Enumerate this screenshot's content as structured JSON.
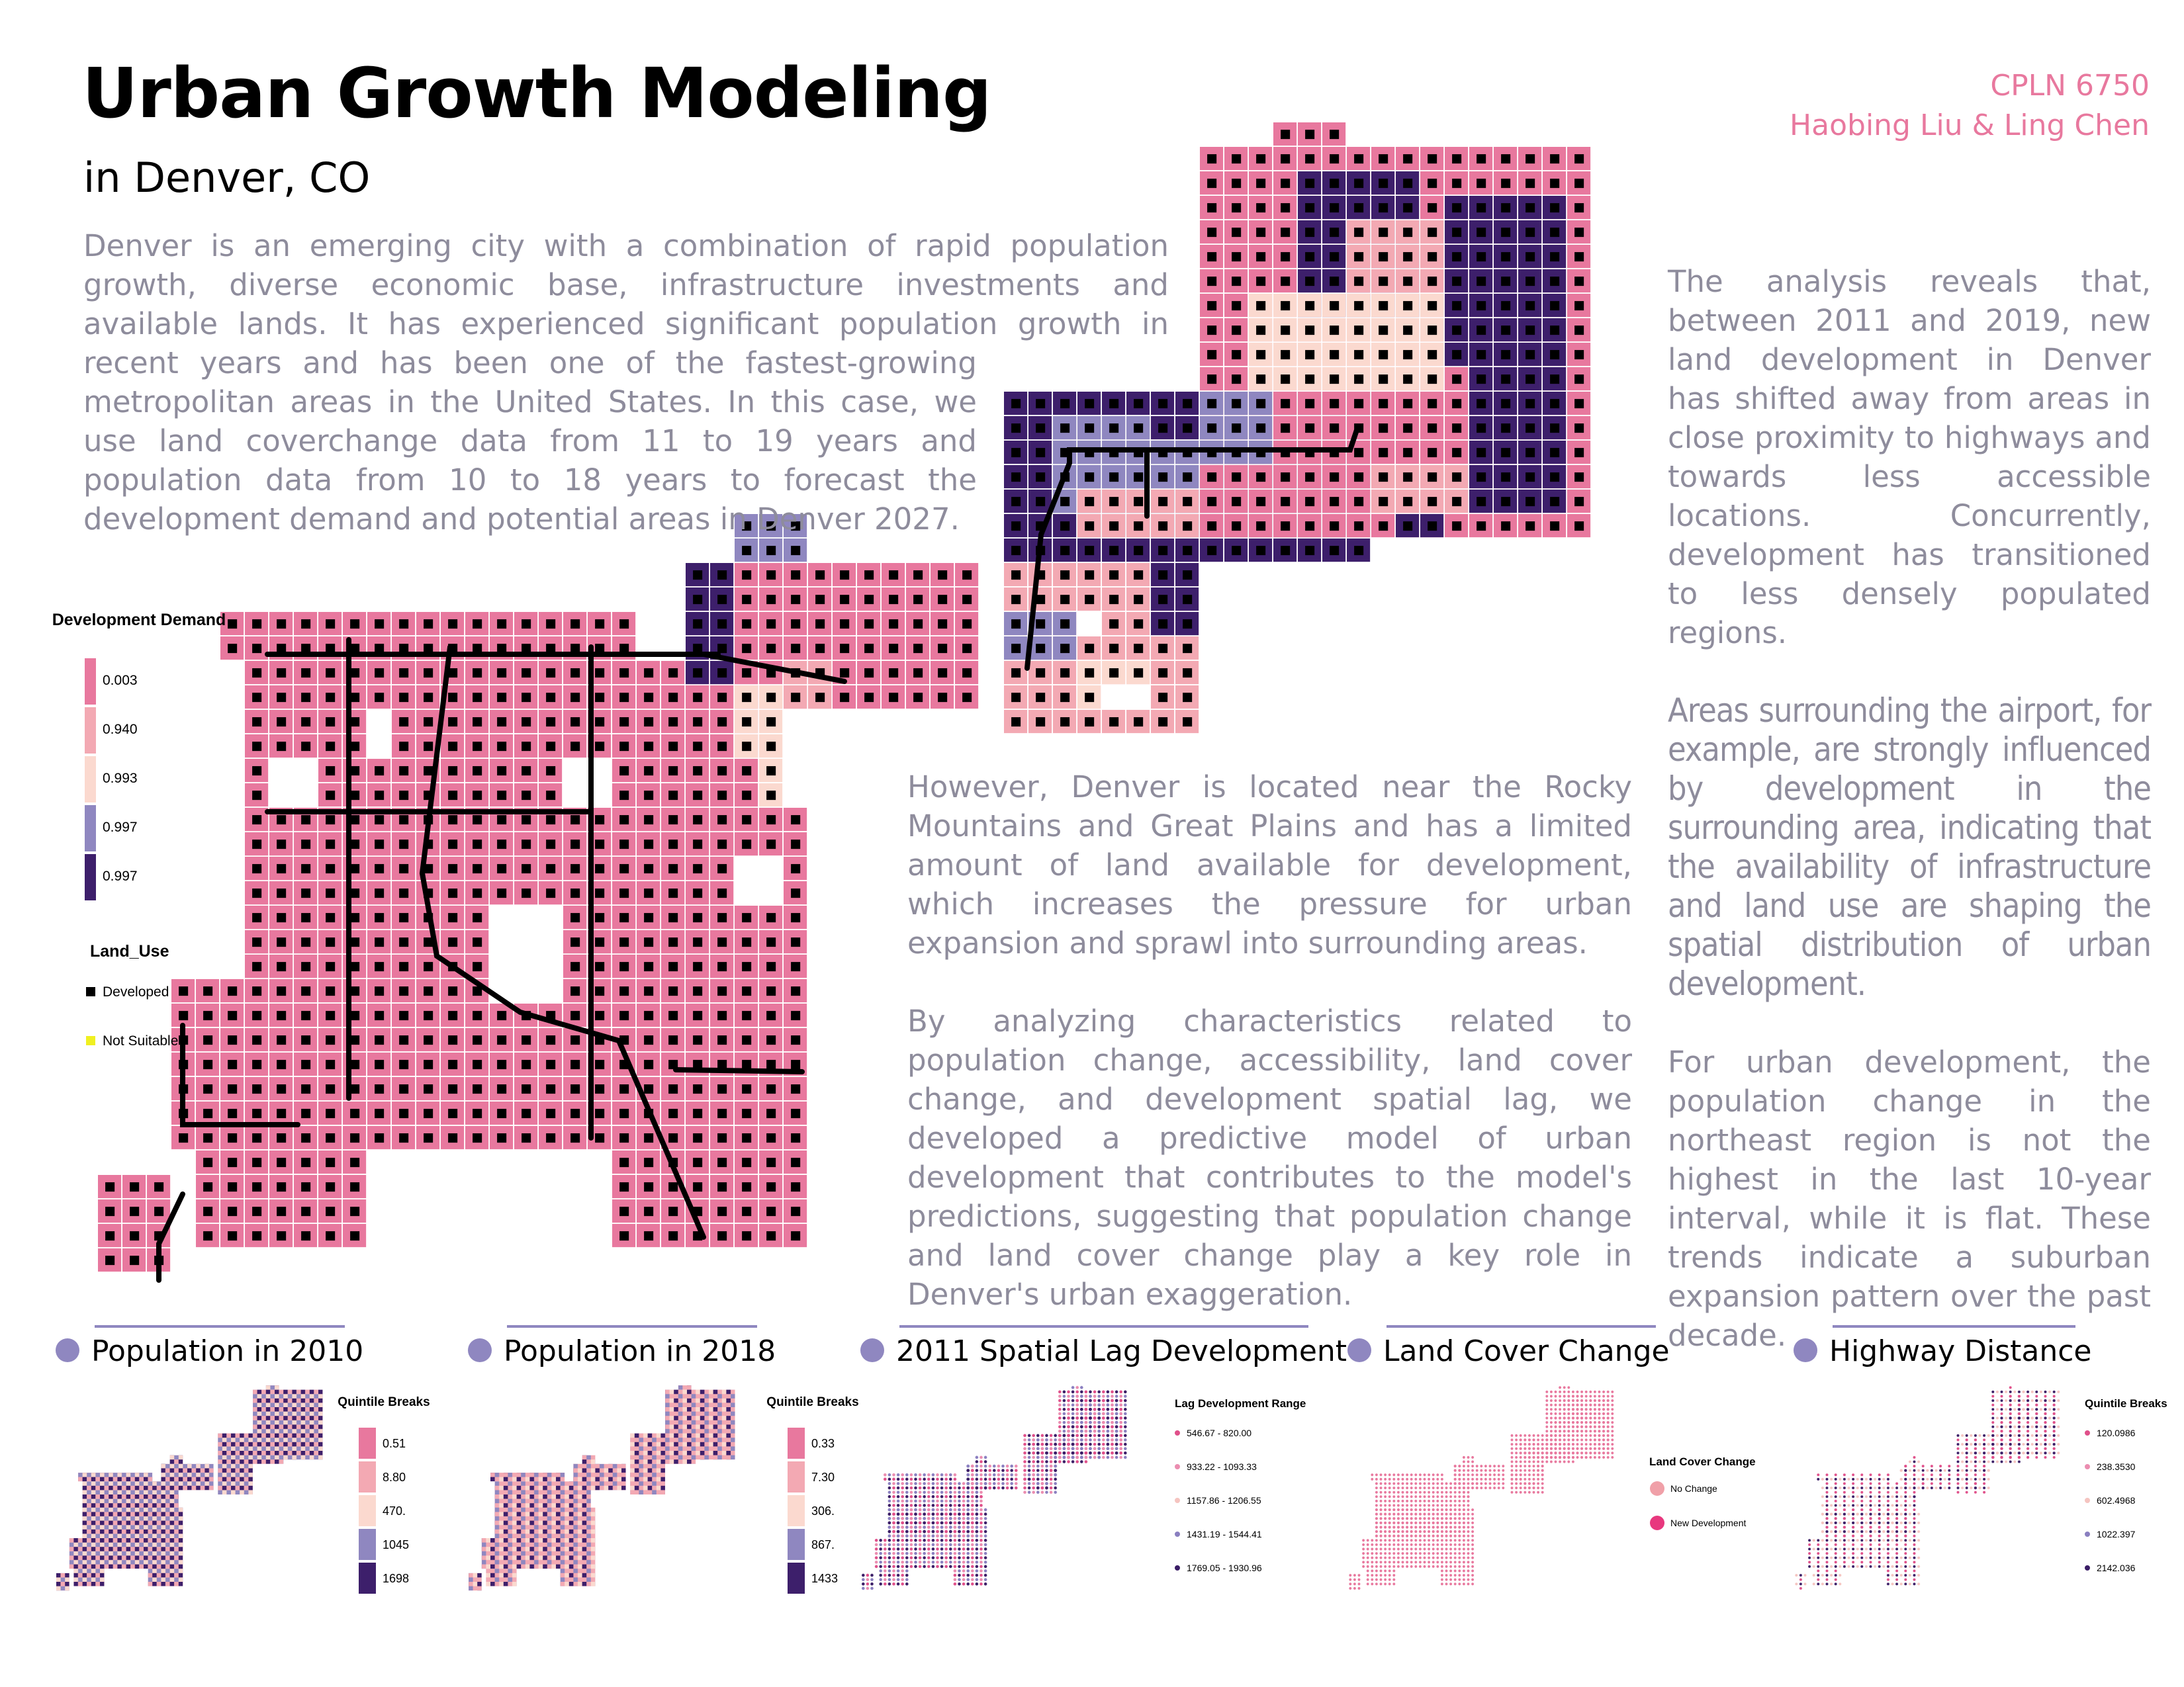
{
  "header": {
    "title": "Urban Growth Modeling",
    "subtitle": "in Denver, CO",
    "course": "CPLN 6750",
    "authors": "Haobing Liu & Ling Chen"
  },
  "intro": "Denver is an emerging city with a combination of rapid population growth, diverse economic base, infrastructure investments and available lands. It has experienced significant population growth in recent years and has been one of the fastest-growing metropolitan areas in the United States.  In this case, we use land coverchange data from 11 to 19 years and population data from 10 to 18 years to forecast the development demand and potential areas in Denver 2027.",
  "legend": {
    "demand_title": "Development Demand",
    "demand_values": [
      "0.003",
      "0.940",
      "0.993",
      "0.997",
      "0.997"
    ],
    "land_use_title": "Land_Use",
    "land_use_items": [
      "Developed",
      "Not Suitable"
    ]
  },
  "middle_text": [
    "However, Denver is located near the Rocky Mountains and Great Plains and has a limited amount of land available for development, which increases the pressure for urban expansion and sprawl into surrounding areas.",
    "By analyzing characteristics related to population change, accessibility, land cover change, and development spatial lag, we developed a predictive model of urban development that contributes to the model's predictions, suggesting that population change and land cover change play a key role in Denver's urban exaggeration."
  ],
  "right_text": [
    "The analysis reveals that, between 2011 and 2019, new land development in Denver has shifted away from areas in close proximity to highways and towards less accessible locations. Concurrently, development has transitioned to less densely populated regions.",
    "Areas surrounding the airport, for example, are strongly influenced by development in the surrounding area, indicating that the availability of infrastructure and land use are shaping the spatial distribution of urban development.",
    "For urban development, the population change in the northeast region is not the highest in the last 10-year interval, while it is flat. These trends indicate a suburban expansion pattern over the past decade."
  ],
  "panels": [
    {
      "title": "Population in 2010",
      "legend_title": "Quintile Breaks",
      "legend_items": [
        "0.51",
        "8.80",
        "470.",
        "1045",
        "1698"
      ]
    },
    {
      "title": "Population in 2018",
      "legend_title": "Quintile Breaks",
      "legend_items": [
        "0.33",
        "7.30",
        "306.",
        "867.",
        "1433"
      ]
    },
    {
      "title": "2011 Spatial Lag Development",
      "legend_title": "Lag Development Range",
      "legend_items": [
        "546.67 - 820.00",
        "933.22 - 1093.33",
        "1157.86 - 1206.55",
        "1431.19 - 1544.41",
        "1769.05 - 1930.96"
      ]
    },
    {
      "title": "Land Cover Change",
      "legend_title": "Land Cover Change",
      "legend_items": [
        "No Change",
        "New Development"
      ]
    },
    {
      "title": "Highway Distance",
      "legend_title": "Quintile Breaks",
      "legend_items": [
        "120.0986",
        "238.3530",
        "602.4968",
        "1022.397",
        "2142.036"
      ]
    }
  ]
}
